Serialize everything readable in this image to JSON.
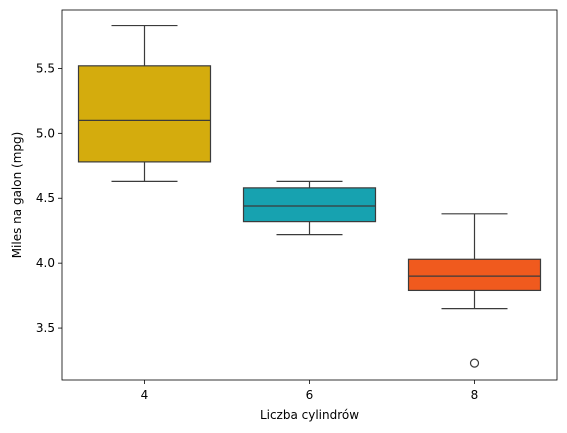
{
  "chart_data": {
    "type": "box",
    "xlabel": "Liczba cylindrów",
    "ylabel": "Miles na galon (mpg)",
    "ylim": [
      3.1,
      5.95
    ],
    "yticks": [
      "3.5",
      "4.0",
      "4.5",
      "5.0",
      "5.5"
    ],
    "grid": false,
    "categories": [
      "4",
      "6",
      "8"
    ],
    "boxes": [
      {
        "category": "4",
        "whisker_low": 4.63,
        "q1": 4.78,
        "median": 5.1,
        "q3": 5.52,
        "whisker_high": 5.83,
        "outliers": [],
        "color": "#D4AC0D"
      },
      {
        "category": "6",
        "whisker_low": 4.22,
        "q1": 4.32,
        "median": 4.44,
        "q3": 4.58,
        "whisker_high": 4.63,
        "outliers": [],
        "color": "#17A2B0"
      },
      {
        "category": "8",
        "whisker_low": 3.65,
        "q1": 3.79,
        "median": 3.9,
        "q3": 4.03,
        "whisker_high": 4.38,
        "outliers": [
          3.23
        ],
        "color": "#F05A1E"
      }
    ]
  }
}
